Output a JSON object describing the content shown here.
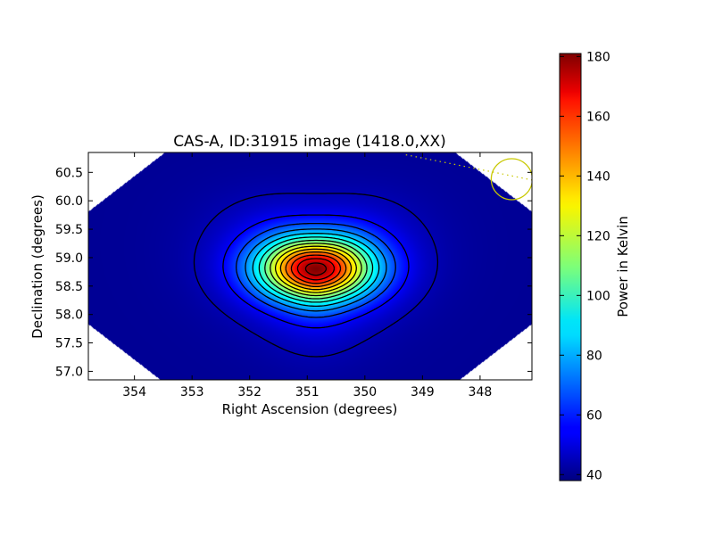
{
  "chart_data": {
    "type": "heatmap",
    "title": "CAS-A, ID:31915 image (1418.0,XX)",
    "xlabel": "Right Ascension (degrees)",
    "ylabel": "Declination (degrees)",
    "xlim": [
      354.8,
      347.1
    ],
    "ylim": [
      56.85,
      60.85
    ],
    "x_ticks": [
      354,
      353,
      352,
      351,
      350,
      349,
      348
    ],
    "x_tick_labels": [
      "354",
      "353",
      "352",
      "351",
      "350",
      "349",
      "348"
    ],
    "y_ticks": [
      57.0,
      57.5,
      58.0,
      58.5,
      59.0,
      59.5,
      60.0,
      60.5
    ],
    "y_tick_labels": [
      "57.0",
      "57.5",
      "58.0",
      "58.5",
      "59.0",
      "59.5",
      "60.0",
      "60.5"
    ],
    "colorbar": {
      "label": "Power in Kelvin",
      "range": [
        38,
        181
      ],
      "ticks": [
        40,
        60,
        80,
        100,
        120,
        140,
        160,
        180
      ],
      "tick_labels": [
        "40",
        "60",
        "80",
        "100",
        "120",
        "140",
        "160",
        "180"
      ],
      "colormap": "jet"
    },
    "source": {
      "ra": 350.85,
      "dec": 58.8,
      "peak_kelvin": 181,
      "background_kelvin": 41
    },
    "contour_levels_kelvin": [
      45,
      55,
      65,
      75,
      85,
      95,
      105,
      115,
      125,
      135,
      145,
      155,
      165,
      175
    ],
    "beam_marker": {
      "ra": 347.45,
      "dec": 60.38,
      "color": "#c8c800"
    },
    "grid": false
  }
}
